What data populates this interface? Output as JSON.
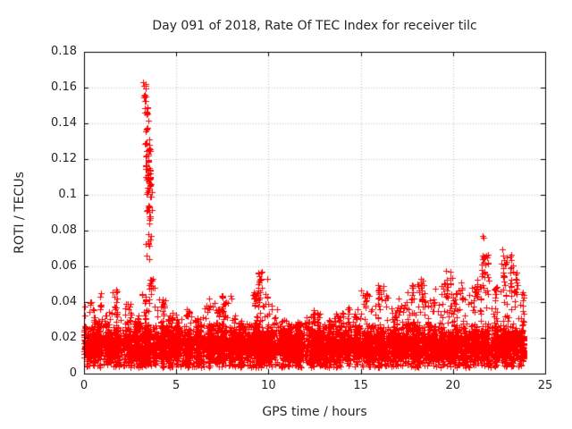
{
  "chart_data": {
    "type": "scatter",
    "title": "Day 091 of 2018, Rate Of TEC Index for receiver tilc",
    "xlabel": "GPS time / hours",
    "ylabel": "ROTI / TECUs",
    "xlim": [
      0,
      25
    ],
    "ylim": [
      0,
      0.18
    ],
    "xticks": {
      "values": [
        0,
        5,
        10,
        15,
        20,
        25
      ],
      "labels": [
        "0",
        "5",
        "10",
        "15",
        "20",
        "25"
      ]
    },
    "yticks": {
      "values": [
        0,
        0.02,
        0.04,
        0.06,
        0.08,
        0.1,
        0.12,
        0.14,
        0.16,
        0.18
      ],
      "labels": [
        "0",
        "0.02",
        "0.04",
        "0.06",
        "0.08",
        "0.1",
        "0.12",
        "0.14",
        "0.16",
        "0.18"
      ]
    },
    "grid": true,
    "grid_style": "dotted",
    "legend": "none",
    "marker": {
      "shape": "plus",
      "color": "#ff0000",
      "size": 7
    },
    "colors": {
      "background": "#ffffff",
      "border": "#000000",
      "grid": "#c0c0c0",
      "text": "#262626",
      "series": "#ff0000"
    },
    "series_name": "ROTI",
    "x_start": 0,
    "x_end": 23.85,
    "seed": 91,
    "band": {
      "description": "dense noise band of + markers; tops = max band envelope per 0.5h bin",
      "bin_width": 0.5,
      "points_per_bin": 155,
      "y_core": [
        0.006,
        0.028
      ],
      "y_floor": 0.0035,
      "tops": [
        0.042,
        0.032,
        0.035,
        0.048,
        0.04,
        0.034,
        0.046,
        0.053,
        0.042,
        0.034,
        0.032,
        0.038,
        0.034,
        0.043,
        0.04,
        0.044,
        0.034,
        0.028,
        0.046,
        0.057,
        0.04,
        0.03,
        0.028,
        0.03,
        0.032,
        0.036,
        0.03,
        0.034,
        0.038,
        0.036,
        0.047,
        0.042,
        0.05,
        0.038,
        0.042,
        0.046,
        0.053,
        0.042,
        0.05,
        0.058,
        0.048,
        0.044,
        0.05,
        0.065,
        0.052,
        0.068,
        0.062,
        0.048
      ]
    },
    "spikes": [
      {
        "x": 0.9,
        "y0": 0.036,
        "y1": 0.047,
        "n": 7
      },
      {
        "x": 1.7,
        "y0": 0.036,
        "y1": 0.048,
        "n": 7
      },
      {
        "x": 3.62,
        "y0": 0.042,
        "y1": 0.053,
        "n": 8
      },
      {
        "x": 7.5,
        "y0": 0.035,
        "y1": 0.044,
        "n": 7
      },
      {
        "x": 9.25,
        "y0": 0.036,
        "y1": 0.046,
        "n": 7
      },
      {
        "x": 9.5,
        "y0": 0.04,
        "y1": 0.057,
        "n": 13
      },
      {
        "x": 12.45,
        "y0": 0.028,
        "y1": 0.036,
        "n": 7
      },
      {
        "x": 15.3,
        "y0": 0.038,
        "y1": 0.047,
        "n": 9
      },
      {
        "x": 16.0,
        "y0": 0.04,
        "y1": 0.05,
        "n": 9
      },
      {
        "x": 17.8,
        "y0": 0.04,
        "y1": 0.05,
        "n": 8
      },
      {
        "x": 18.3,
        "y0": 0.04,
        "y1": 0.053,
        "n": 9
      },
      {
        "x": 19.7,
        "y0": 0.042,
        "y1": 0.058,
        "n": 9
      },
      {
        "x": 20.5,
        "y0": 0.04,
        "y1": 0.051,
        "n": 7
      },
      {
        "x": 21.3,
        "y0": 0.042,
        "y1": 0.055,
        "n": 7
      },
      {
        "x": 21.65,
        "y0": 0.045,
        "y1": 0.077,
        "n": 13
      },
      {
        "x": 21.9,
        "y0": 0.044,
        "y1": 0.068,
        "n": 9
      },
      {
        "x": 22.75,
        "y0": 0.045,
        "y1": 0.071,
        "n": 12
      },
      {
        "x": 23.15,
        "y0": 0.045,
        "y1": 0.067,
        "n": 12
      },
      {
        "x": 23.45,
        "y0": 0.04,
        "y1": 0.06,
        "n": 9
      }
    ],
    "burst_clusters": [
      {
        "cx": 3.3,
        "sx": 0.05,
        "y0": 0.152,
        "y1": 0.163,
        "n": 12
      },
      {
        "cx": 3.4,
        "sx": 0.06,
        "y0": 0.128,
        "y1": 0.15,
        "n": 22
      },
      {
        "cx": 3.48,
        "sx": 0.08,
        "y0": 0.09,
        "y1": 0.126,
        "n": 58
      },
      {
        "cx": 3.52,
        "sx": 0.08,
        "y0": 0.063,
        "y1": 0.089,
        "n": 16
      }
    ]
  }
}
